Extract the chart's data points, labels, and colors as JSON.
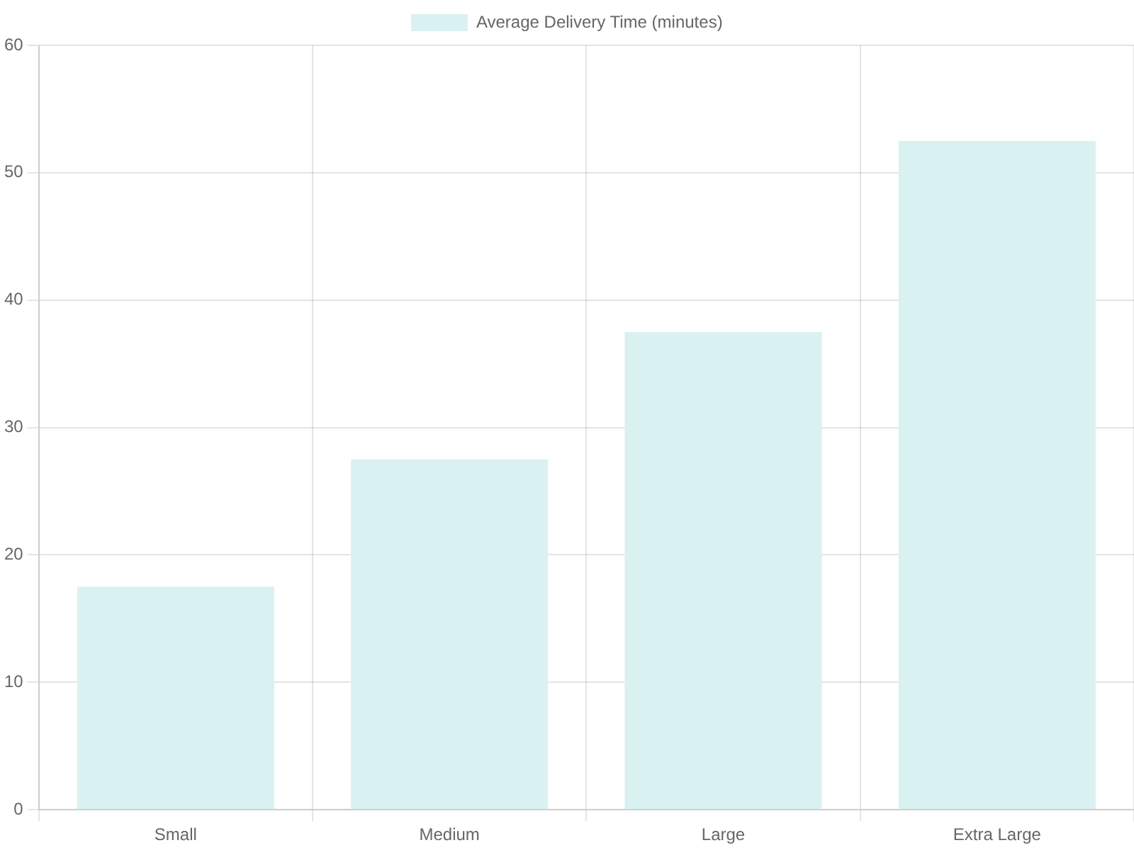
{
  "chart_data": {
    "type": "bar",
    "categories": [
      "Small",
      "Medium",
      "Large",
      "Extra Large"
    ],
    "series": [
      {
        "name": "Average Delivery Time (minutes)",
        "color": "#daf1f1",
        "values": [
          17.5,
          27.5,
          37.5,
          52.5
        ]
      }
    ],
    "ylim": [
      0,
      60
    ],
    "yticks": [
      0,
      10,
      20,
      30,
      40,
      50,
      60
    ],
    "grid": true,
    "legend": "top"
  }
}
